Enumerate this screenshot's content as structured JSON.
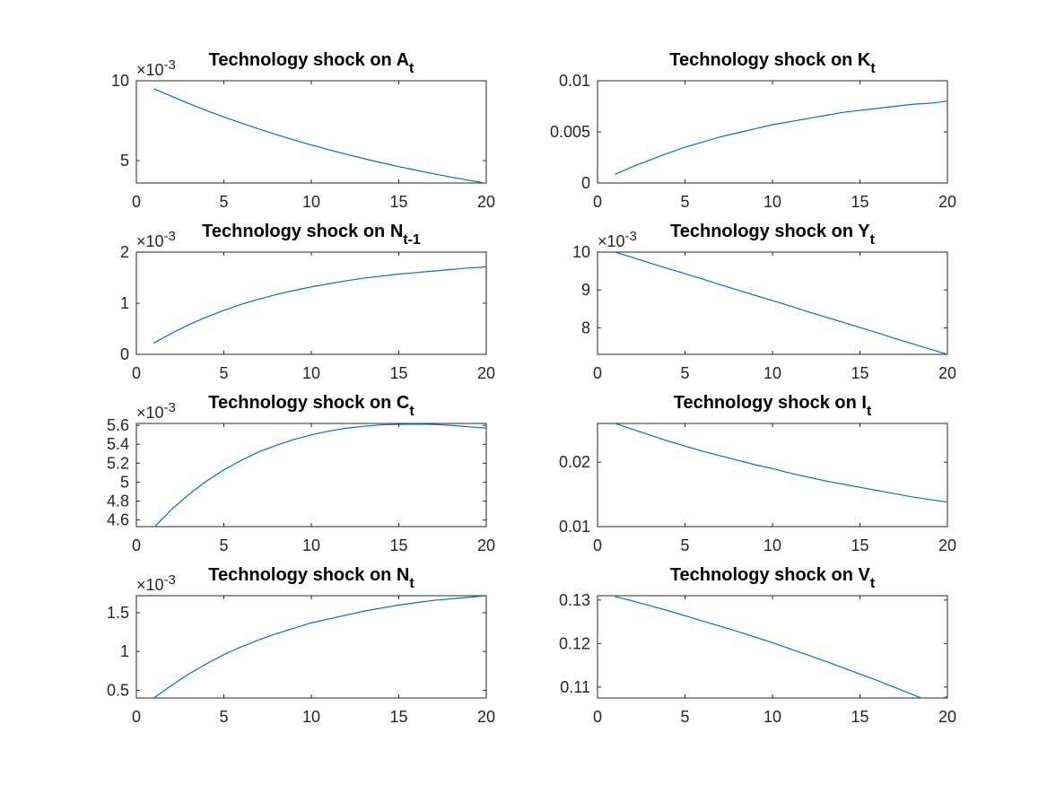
{
  "chart_data": [
    {
      "type": "line",
      "title": "Technology shock on A",
      "title_sub": "t",
      "exponent": "×10",
      "exponent_power": "-3",
      "xlim": [
        0,
        20
      ],
      "ylim": [
        3.6,
        10
      ],
      "xticks": [
        0,
        5,
        10,
        15,
        20
      ],
      "xtick_labels": [
        "0",
        "5",
        "10",
        "15",
        "20"
      ],
      "yticks": [
        5,
        10
      ],
      "ytick_labels": [
        "5",
        "10"
      ],
      "color": "#0072BD",
      "series": [
        {
          "x": [
            1,
            2,
            3,
            4,
            5,
            6,
            7,
            8,
            9,
            10,
            11,
            12,
            13,
            14,
            15,
            16,
            17,
            18,
            19,
            20
          ],
          "values": [
            9.5,
            9.03,
            8.57,
            8.14,
            7.73,
            7.35,
            6.98,
            6.63,
            6.3,
            5.98,
            5.68,
            5.4,
            5.13,
            4.87,
            4.63,
            4.4,
            4.18,
            3.97,
            3.77,
            3.58
          ]
        }
      ]
    },
    {
      "type": "line",
      "title": "Technology shock on K",
      "title_sub": "t",
      "exponent": "",
      "exponent_power": "",
      "xlim": [
        0,
        20
      ],
      "ylim": [
        0,
        0.01
      ],
      "xticks": [
        0,
        5,
        10,
        15,
        20
      ],
      "xtick_labels": [
        "0",
        "5",
        "10",
        "15",
        "20"
      ],
      "yticks": [
        0,
        0.005,
        0.01
      ],
      "ytick_labels": [
        "0",
        "0.005",
        "0.01"
      ],
      "color": "#0072BD",
      "series": [
        {
          "x": [
            1,
            2,
            3,
            4,
            5,
            6,
            7,
            8,
            9,
            10,
            11,
            12,
            13,
            14,
            15,
            16,
            17,
            18,
            19,
            20
          ],
          "values": [
            0.00085,
            0.0016,
            0.00225,
            0.0029,
            0.0035,
            0.004,
            0.0045,
            0.0049,
            0.0053,
            0.0057,
            0.006,
            0.0063,
            0.0066,
            0.0069,
            0.0071,
            0.0073,
            0.0075,
            0.0077,
            0.0078,
            0.008
          ]
        }
      ]
    },
    {
      "type": "line",
      "title": "Technology shock on N",
      "title_sub": "t-1",
      "exponent": "×10",
      "exponent_power": "-3",
      "xlim": [
        0,
        20
      ],
      "ylim": [
        0,
        2
      ],
      "xticks": [
        0,
        5,
        10,
        15,
        20
      ],
      "xtick_labels": [
        "0",
        "5",
        "10",
        "15",
        "20"
      ],
      "yticks": [
        0,
        1,
        2
      ],
      "ytick_labels": [
        "0",
        "1",
        "2"
      ],
      "color": "#0072BD",
      "series": [
        {
          "x": [
            1,
            2,
            3,
            4,
            5,
            6,
            7,
            8,
            9,
            10,
            11,
            12,
            13,
            14,
            15,
            16,
            17,
            18,
            19,
            20
          ],
          "values": [
            0.22,
            0.41,
            0.58,
            0.73,
            0.86,
            0.98,
            1.08,
            1.17,
            1.25,
            1.32,
            1.38,
            1.44,
            1.49,
            1.53,
            1.57,
            1.6,
            1.63,
            1.66,
            1.69,
            1.71
          ]
        }
      ]
    },
    {
      "type": "line",
      "title": "Technology shock on Y",
      "title_sub": "t",
      "exponent": "×10",
      "exponent_power": "-3",
      "xlim": [
        0,
        20
      ],
      "ylim": [
        7.3,
        10
      ],
      "xticks": [
        0,
        5,
        10,
        15,
        20
      ],
      "xtick_labels": [
        "0",
        "5",
        "10",
        "15",
        "20"
      ],
      "yticks": [
        8,
        9,
        10
      ],
      "ytick_labels": [
        "8",
        "9",
        "10"
      ],
      "color": "#0072BD",
      "series": [
        {
          "x": [
            1,
            2,
            3,
            4,
            5,
            6,
            7,
            8,
            9,
            10,
            11,
            12,
            13,
            14,
            15,
            16,
            17,
            18,
            19,
            20
          ],
          "values": [
            10.0,
            9.86,
            9.71,
            9.57,
            9.43,
            9.29,
            9.14,
            9.0,
            8.86,
            8.72,
            8.58,
            8.43,
            8.29,
            8.15,
            8.01,
            7.87,
            7.72,
            7.58,
            7.44,
            7.3
          ]
        }
      ]
    },
    {
      "type": "line",
      "title": "Technology shock on C",
      "title_sub": "t",
      "exponent": "×10",
      "exponent_power": "-3",
      "xlim": [
        0,
        20
      ],
      "ylim": [
        4.53,
        5.62
      ],
      "xticks": [
        0,
        5,
        10,
        15,
        20
      ],
      "xtick_labels": [
        "0",
        "5",
        "10",
        "15",
        "20"
      ],
      "yticks": [
        4.6,
        4.8,
        5.0,
        5.2,
        5.4,
        5.6
      ],
      "ytick_labels": [
        "4.6",
        "4.8",
        "5",
        "5.2",
        "5.4",
        "5.6"
      ],
      "color": "#0072BD",
      "series": [
        {
          "x": [
            1,
            2,
            3,
            4,
            5,
            6,
            7,
            8,
            9,
            10,
            11,
            12,
            13,
            14,
            15,
            16,
            17,
            18,
            19,
            20
          ],
          "values": [
            4.52,
            4.71,
            4.87,
            5.01,
            5.13,
            5.23,
            5.32,
            5.39,
            5.45,
            5.5,
            5.54,
            5.57,
            5.59,
            5.605,
            5.61,
            5.613,
            5.61,
            5.6,
            5.585,
            5.57
          ]
        }
      ]
    },
    {
      "type": "line",
      "title": "Technology shock on I",
      "title_sub": "t",
      "exponent": "",
      "exponent_power": "",
      "xlim": [
        0,
        20
      ],
      "ylim": [
        0.01,
        0.026
      ],
      "xticks": [
        0,
        5,
        10,
        15,
        20
      ],
      "xtick_labels": [
        "0",
        "5",
        "10",
        "15",
        "20"
      ],
      "yticks": [
        0.01,
        0.02
      ],
      "ytick_labels": [
        "0.01",
        "0.02"
      ],
      "color": "#0072BD",
      "series": [
        {
          "x": [
            1,
            2,
            3,
            4,
            5,
            6,
            7,
            8,
            9,
            10,
            11,
            12,
            13,
            14,
            15,
            16,
            17,
            18,
            19,
            20
          ],
          "values": [
            0.026,
            0.0251,
            0.0242,
            0.0233,
            0.0225,
            0.0217,
            0.021,
            0.0203,
            0.0196,
            0.019,
            0.0183,
            0.0177,
            0.0171,
            0.0166,
            0.0161,
            0.0156,
            0.0151,
            0.0146,
            0.0142,
            0.0138
          ]
        }
      ]
    },
    {
      "type": "line",
      "title": "Technology shock on N",
      "title_sub": "t",
      "exponent": "×10",
      "exponent_power": "-3",
      "xlim": [
        0,
        20
      ],
      "ylim": [
        0.4,
        1.72
      ],
      "xticks": [
        0,
        5,
        10,
        15,
        20
      ],
      "xtick_labels": [
        "0",
        "5",
        "10",
        "15",
        "20"
      ],
      "yticks": [
        0.5,
        1,
        1.5
      ],
      "ytick_labels": [
        "0.5",
        "1",
        "1.5"
      ],
      "color": "#0072BD",
      "series": [
        {
          "x": [
            1,
            2,
            3,
            4,
            5,
            6,
            7,
            8,
            9,
            10,
            11,
            12,
            13,
            14,
            15,
            16,
            17,
            18,
            19,
            20
          ],
          "values": [
            0.4,
            0.56,
            0.71,
            0.84,
            0.96,
            1.06,
            1.15,
            1.23,
            1.3,
            1.37,
            1.42,
            1.47,
            1.52,
            1.56,
            1.6,
            1.63,
            1.66,
            1.68,
            1.7,
            1.72
          ]
        }
      ]
    },
    {
      "type": "line",
      "title": "Technology shock on V",
      "title_sub": "t",
      "exponent": "",
      "exponent_power": "",
      "xlim": [
        0,
        20
      ],
      "ylim": [
        0.1075,
        0.131
      ],
      "xticks": [
        0,
        5,
        10,
        15,
        20
      ],
      "xtick_labels": [
        "0",
        "5",
        "10",
        "15",
        "20"
      ],
      "yticks": [
        0.11,
        0.12,
        0.13
      ],
      "ytick_labels": [
        "0.11",
        "0.12",
        "0.13"
      ],
      "color": "#0072BD",
      "series": [
        {
          "x": [
            1,
            2,
            3,
            4,
            5,
            6,
            7,
            8,
            9,
            10,
            11,
            12,
            13,
            14,
            15,
            16,
            17,
            18,
            19,
            20
          ],
          "values": [
            0.1308,
            0.1298,
            0.1287,
            0.1276,
            0.1264,
            0.1252,
            0.124,
            0.1228,
            0.1215,
            0.1202,
            0.1188,
            0.1174,
            0.116,
            0.1145,
            0.113,
            0.1115,
            0.1099,
            0.1083,
            0.1067,
            0.1075
          ]
        }
      ]
    }
  ]
}
